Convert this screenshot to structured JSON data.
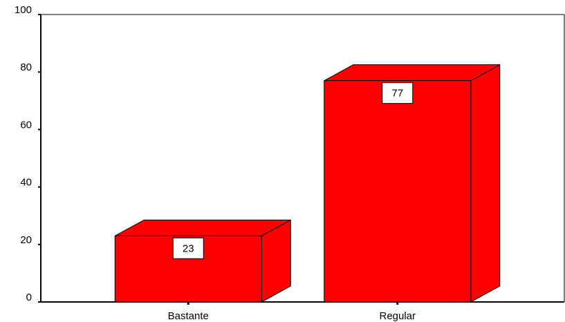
{
  "chart_data": {
    "type": "bar3d",
    "categories": [
      "Bastante",
      "Regular"
    ],
    "values": [
      23,
      77
    ],
    "color": "#ff0000",
    "ylim": [
      0,
      100
    ],
    "yticks": [
      0,
      20,
      40,
      60,
      80,
      100
    ]
  }
}
